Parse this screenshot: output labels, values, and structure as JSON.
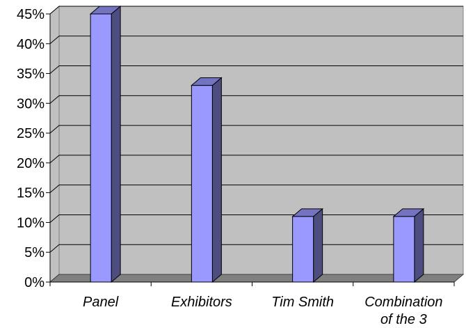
{
  "chart_data": {
    "type": "bar",
    "categories": [
      "Panel",
      "Exhibitors",
      "Tim Smith",
      "Combination of the 3"
    ],
    "category_label_lines": [
      [
        "Panel"
      ],
      [
        "Exhibitors"
      ],
      [
        "Tim Smith"
      ],
      [
        "Combination",
        "of the 3"
      ]
    ],
    "values": [
      45,
      33,
      11,
      11
    ],
    "value_unit": "%",
    "ylim": [
      0,
      45
    ],
    "yticks": [
      "0%",
      "5%",
      "10%",
      "15%",
      "20%",
      "25%",
      "30%",
      "35%",
      "40%",
      "45%"
    ],
    "ytick_values": [
      0,
      5,
      10,
      15,
      20,
      25,
      30,
      35,
      40,
      45
    ],
    "grid": true,
    "legend": "none",
    "style": "3d-column"
  },
  "colors": {
    "plot_background": "#c0c0c0",
    "floor": "#808080",
    "bar_front": "#9999ff",
    "bar_side": "#4d4d80",
    "bar_top": "#7373c0",
    "grid": "#000000"
  }
}
